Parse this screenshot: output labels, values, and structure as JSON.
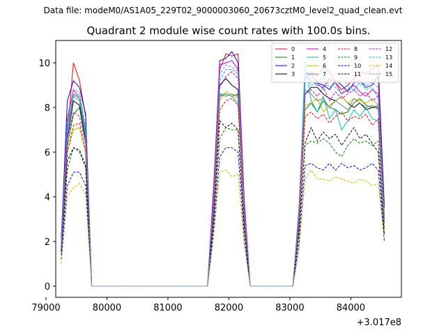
{
  "figure": {
    "suptitle": "Data file: modeM0/AS1A05_229T02_9000003060_20673cztM0_level2_quad_clean.evt"
  },
  "chart_data": {
    "type": "line",
    "title": "Quadrant 2 module wise count rates with 100.0s bins.",
    "xlabel": "",
    "ylabel": "",
    "x_offset_label": "+3.017e8",
    "xlim": [
      79160,
      84830
    ],
    "ylim": [
      -0.5,
      11.0
    ],
    "x_ticks": [
      79000,
      80000,
      81000,
      82000,
      83000,
      84000
    ],
    "y_ticks": [
      0,
      2,
      4,
      6,
      8,
      10
    ],
    "grid": false,
    "legend": {
      "placement": "top-right",
      "columns": 4
    },
    "x": [
      79250,
      79350,
      79450,
      79550,
      79650,
      79750,
      79850,
      79950,
      80050,
      80150,
      80250,
      80350,
      80450,
      80550,
      80650,
      80750,
      80850,
      80950,
      81050,
      81150,
      81250,
      81350,
      81450,
      81550,
      81650,
      81750,
      81850,
      81950,
      82050,
      82150,
      82250,
      82350,
      82450,
      82550,
      82650,
      82750,
      82850,
      82950,
      83050,
      83150,
      83250,
      83350,
      83450,
      83550,
      83650,
      83750,
      83850,
      83950,
      84050,
      84150,
      84250,
      84350,
      84450,
      84550
    ],
    "series": [
      {
        "name": "0",
        "color": "#ff0000",
        "dash": "solid",
        "values": [
          2.2,
          6.8,
          10.0,
          9.2,
          7.6,
          0,
          0,
          0,
          0,
          0,
          0,
          0,
          0,
          0,
          0,
          0,
          0,
          0,
          0,
          0,
          0,
          0,
          0,
          0,
          0,
          4.5,
          9.7,
          10.4,
          10.3,
          10.4,
          4.0,
          0,
          0,
          0,
          0,
          0,
          0,
          0,
          0,
          3.5,
          9.5,
          9.6,
          9.4,
          9.8,
          9.6,
          9.1,
          8.8,
          9.0,
          9.3,
          9.6,
          9.5,
          9.7,
          9.9,
          3.6
        ]
      },
      {
        "name": "1",
        "color": "#008000",
        "dash": "solid",
        "values": [
          1.9,
          6.3,
          7.7,
          8.0,
          6.4,
          0,
          0,
          0,
          0,
          0,
          0,
          0,
          0,
          0,
          0,
          0,
          0,
          0,
          0,
          0,
          0,
          0,
          0,
          0,
          0,
          3.4,
          8.5,
          8.6,
          8.5,
          8.6,
          3.1,
          0,
          0,
          0,
          0,
          0,
          0,
          0,
          0,
          2.8,
          7.9,
          8.2,
          7.8,
          8.3,
          8.0,
          7.9,
          7.7,
          7.8,
          8.2,
          8.4,
          8.1,
          8.0,
          8.1,
          2.9
        ]
      },
      {
        "name": "2",
        "color": "#0000ff",
        "dash": "solid",
        "values": [
          2.1,
          8.3,
          9.2,
          8.9,
          7.7,
          0,
          0,
          0,
          0,
          0,
          0,
          0,
          0,
          0,
          0,
          0,
          0,
          0,
          0,
          0,
          0,
          0,
          0,
          0,
          0,
          4.3,
          10.1,
          10.2,
          10.5,
          10.0,
          3.8,
          0,
          0,
          0,
          0,
          0,
          0,
          0,
          0,
          3.3,
          9.3,
          9.5,
          9.1,
          9.0,
          8.8,
          9.2,
          9.0,
          8.7,
          9.1,
          9.2,
          8.9,
          9.0,
          9.4,
          3.5
        ]
      },
      {
        "name": "3",
        "color": "#000000",
        "dash": "solid",
        "values": [
          1.8,
          6.6,
          8.3,
          8.1,
          6.6,
          0,
          0,
          0,
          0,
          0,
          0,
          0,
          0,
          0,
          0,
          0,
          0,
          0,
          0,
          0,
          0,
          0,
          0,
          0,
          0,
          3.8,
          9.0,
          9.3,
          9.0,
          8.8,
          3.4,
          0,
          0,
          0,
          0,
          0,
          0,
          0,
          0,
          3.0,
          8.6,
          8.9,
          8.9,
          8.6,
          8.4,
          8.3,
          8.5,
          8.2,
          8.0,
          8.2,
          7.9,
          8.0,
          8.0,
          3.0
        ]
      },
      {
        "name": "4",
        "color": "#cc00cc",
        "dash": "solid",
        "values": [
          2.0,
          7.5,
          8.8,
          8.4,
          7.0,
          0,
          0,
          0,
          0,
          0,
          0,
          0,
          0,
          0,
          0,
          0,
          0,
          0,
          0,
          0,
          0,
          0,
          0,
          0,
          0,
          4.2,
          9.9,
          10.0,
          10.1,
          9.7,
          3.7,
          0,
          0,
          0,
          0,
          0,
          0,
          0,
          0,
          3.3,
          9.4,
          9.2,
          9.0,
          8.9,
          9.3,
          9.1,
          8.6,
          8.8,
          9.0,
          8.7,
          8.5,
          8.8,
          8.6,
          3.2
        ]
      },
      {
        "name": "5",
        "color": "#00bfbf",
        "dash": "solid",
        "values": [
          1.7,
          6.9,
          8.5,
          8.3,
          6.7,
          0,
          0,
          0,
          0,
          0,
          0,
          0,
          0,
          0,
          0,
          0,
          0,
          0,
          0,
          0,
          0,
          0,
          0,
          0,
          0,
          3.6,
          8.6,
          8.6,
          8.5,
          8.2,
          3.2,
          0,
          0,
          0,
          0,
          0,
          0,
          0,
          0,
          3.1,
          10.1,
          8.3,
          7.8,
          8.5,
          7.5,
          7.9,
          7.0,
          7.4,
          7.9,
          7.6,
          8.0,
          7.5,
          7.4,
          2.8
        ]
      },
      {
        "name": "6",
        "color": "#bfbf00",
        "dash": "solid",
        "values": [
          1.6,
          6.0,
          7.0,
          7.1,
          5.9,
          0,
          0,
          0,
          0,
          0,
          0,
          0,
          0,
          0,
          0,
          0,
          0,
          0,
          0,
          0,
          0,
          0,
          0,
          0,
          0,
          3.3,
          8.3,
          8.7,
          8.6,
          8.4,
          3.0,
          0,
          0,
          0,
          0,
          0,
          0,
          0,
          0,
          2.7,
          8.1,
          8.2,
          8.4,
          7.8,
          8.1,
          8.3,
          8.5,
          8.2,
          8.4,
          8.3,
          8.2,
          8.4,
          8.1,
          2.8
        ]
      },
      {
        "name": "7",
        "color": "#808080",
        "dash": "solid",
        "values": [
          1.9,
          7.1,
          8.6,
          8.4,
          6.9,
          0,
          0,
          0,
          0,
          0,
          0,
          0,
          0,
          0,
          0,
          0,
          0,
          0,
          0,
          0,
          0,
          0,
          0,
          0,
          0,
          3.7,
          8.6,
          8.5,
          8.6,
          8.5,
          3.2,
          0,
          0,
          0,
          0,
          0,
          0,
          0,
          0,
          3.2,
          8.8,
          8.6,
          8.3,
          8.4,
          8.0,
          8.3,
          8.1,
          7.9,
          8.4,
          8.2,
          8.0,
          8.1,
          7.9,
          2.9
        ]
      },
      {
        "name": "8",
        "color": "#ff0000",
        "dash": "dashed",
        "values": [
          1.5,
          6.0,
          7.2,
          7.3,
          6.1,
          0,
          0,
          0,
          0,
          0,
          0,
          0,
          0,
          0,
          0,
          0,
          0,
          0,
          0,
          0,
          0,
          0,
          0,
          0,
          0,
          3.3,
          7.9,
          8.3,
          8.4,
          8.1,
          3.0,
          0,
          0,
          0,
          0,
          0,
          0,
          0,
          0,
          2.7,
          7.6,
          7.8,
          7.5,
          7.7,
          7.3,
          7.6,
          7.8,
          7.4,
          7.6,
          7.5,
          7.7,
          7.2,
          7.5,
          2.6
        ]
      },
      {
        "name": "9",
        "color": "#008000",
        "dash": "dashed",
        "values": [
          1.4,
          5.2,
          6.2,
          6.0,
          5.3,
          0,
          0,
          0,
          0,
          0,
          0,
          0,
          0,
          0,
          0,
          0,
          0,
          0,
          0,
          0,
          0,
          0,
          0,
          0,
          0,
          2.9,
          6.6,
          7.1,
          7.0,
          7.0,
          2.6,
          0,
          0,
          0,
          0,
          0,
          0,
          0,
          0,
          2.3,
          6.3,
          6.5,
          6.4,
          6.6,
          6.4,
          6.0,
          5.8,
          6.3,
          6.6,
          6.4,
          6.5,
          6.3,
          6.5,
          2.3
        ]
      },
      {
        "name": "10",
        "color": "#0000ff",
        "dash": "dashed",
        "values": [
          1.2,
          4.5,
          5.1,
          5.1,
          4.5,
          0,
          0,
          0,
          0,
          0,
          0,
          0,
          0,
          0,
          0,
          0,
          0,
          0,
          0,
          0,
          0,
          0,
          0,
          0,
          0,
          2.5,
          5.8,
          6.2,
          6.2,
          6.0,
          2.2,
          0,
          0,
          0,
          0,
          0,
          0,
          0,
          0,
          1.9,
          5.4,
          5.5,
          5.3,
          5.2,
          5.5,
          5.2,
          5.5,
          5.3,
          5.4,
          5.2,
          5.3,
          5.5,
          5.2,
          2.0
        ]
      },
      {
        "name": "11",
        "color": "#000000",
        "dash": "dashed",
        "values": [
          1.6,
          5.6,
          6.2,
          6.1,
          5.4,
          0,
          0,
          0,
          0,
          0,
          0,
          0,
          0,
          0,
          0,
          0,
          0,
          0,
          0,
          0,
          0,
          0,
          0,
          0,
          0,
          3.0,
          7.4,
          7.1,
          7.3,
          7.0,
          2.7,
          0,
          0,
          0,
          0,
          0,
          0,
          0,
          0,
          2.5,
          6.4,
          7.1,
          6.5,
          6.9,
          6.6,
          6.8,
          6.3,
          6.7,
          7.1,
          6.6,
          6.8,
          6.4,
          6.0,
          2.3
        ]
      },
      {
        "name": "12",
        "color": "#cc00cc",
        "dash": "dashed",
        "values": [
          1.7,
          6.6,
          7.8,
          7.6,
          6.4,
          0,
          0,
          0,
          0,
          0,
          0,
          0,
          0,
          0,
          0,
          0,
          0,
          0,
          0,
          0,
          0,
          0,
          0,
          0,
          0,
          3.6,
          8.9,
          9.4,
          9.6,
          9.3,
          3.4,
          0,
          0,
          0,
          0,
          0,
          0,
          0,
          0,
          2.9,
          8.6,
          8.8,
          8.5,
          8.9,
          8.3,
          8.7,
          8.4,
          8.6,
          8.8,
          8.5,
          8.7,
          8.3,
          8.5,
          2.9
        ]
      },
      {
        "name": "13",
        "color": "#00bfbf",
        "dash": "dashed",
        "values": [
          1.8,
          7.0,
          8.5,
          8.6,
          6.9,
          0,
          0,
          0,
          0,
          0,
          0,
          0,
          0,
          0,
          0,
          0,
          0,
          0,
          0,
          0,
          0,
          0,
          0,
          0,
          0,
          3.8,
          9.2,
          9.7,
          9.7,
          9.5,
          3.5,
          0,
          0,
          0,
          0,
          0,
          0,
          0,
          0,
          3.1,
          9.6,
          9.0,
          9.1,
          8.8,
          9.2,
          8.9,
          8.6,
          9.0,
          8.7,
          9.1,
          8.8,
          8.9,
          8.4,
          3.0
        ]
      },
      {
        "name": "14",
        "color": "#bfbf00",
        "dash": "dashed",
        "values": [
          1.0,
          4.0,
          4.4,
          4.6,
          4.1,
          0,
          0,
          0,
          0,
          0,
          0,
          0,
          0,
          0,
          0,
          0,
          0,
          0,
          0,
          0,
          0,
          0,
          0,
          0,
          0,
          2.2,
          5.1,
          5.2,
          4.9,
          5.0,
          1.9,
          0,
          0,
          0,
          0,
          0,
          0,
          0,
          0,
          1.6,
          4.8,
          5.2,
          4.8,
          4.8,
          4.7,
          4.9,
          4.8,
          4.7,
          4.6,
          4.8,
          4.7,
          4.5,
          4.6,
          2.1
        ]
      },
      {
        "name": "15",
        "color": "#8080ff",
        "dash": "dashed",
        "values": [
          1.9,
          7.3,
          8.8,
          8.7,
          7.1,
          0,
          0,
          0,
          0,
          0,
          0,
          0,
          0,
          0,
          0,
          0,
          0,
          0,
          0,
          0,
          0,
          0,
          0,
          0,
          0,
          3.9,
          9.5,
          9.9,
          9.8,
          9.6,
          3.6,
          0,
          0,
          0,
          0,
          0,
          0,
          0,
          0,
          3.3,
          9.1,
          9.4,
          9.2,
          9.3,
          8.9,
          9.1,
          9.3,
          9.0,
          8.8,
          9.2,
          9.0,
          9.1,
          8.9,
          3.1
        ]
      }
    ]
  }
}
